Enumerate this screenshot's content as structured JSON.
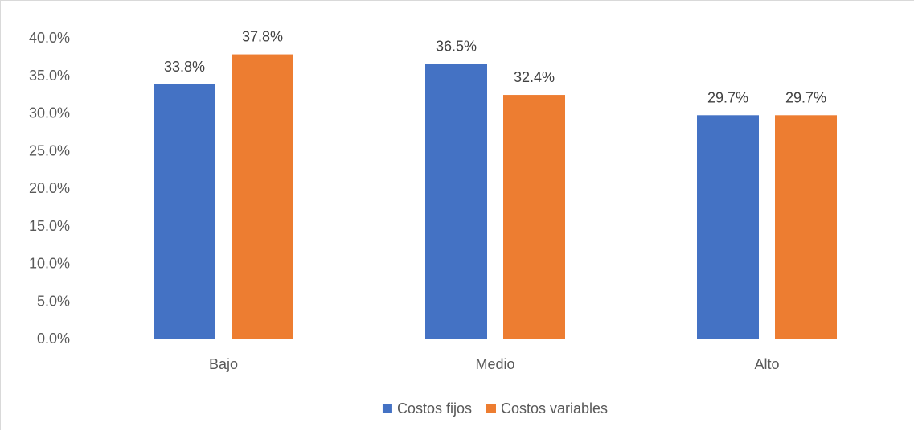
{
  "chart_data": {
    "type": "bar",
    "title": "",
    "xlabel": "",
    "ylabel": "",
    "categories": [
      "Bajo",
      "Medio",
      "Alto"
    ],
    "series": [
      {
        "name": "Costos fijos",
        "color": "#4472c4",
        "values": [
          33.8,
          36.5,
          29.7
        ],
        "labels": [
          "33.8%",
          "36.5%",
          "29.7%"
        ]
      },
      {
        "name": "Costos variables",
        "color": "#ed7d31",
        "values": [
          37.8,
          32.4,
          29.7
        ],
        "labels": [
          "37.8%",
          "32.4%",
          "29.7%"
        ]
      }
    ],
    "ylim": [
      0,
      40
    ],
    "yticks": [
      0,
      5,
      10,
      15,
      20,
      25,
      30,
      35,
      40
    ],
    "ytick_labels": [
      "0.0%",
      "5.0%",
      "10.0%",
      "15.0%",
      "20.0%",
      "25.0%",
      "30.0%",
      "35.0%",
      "40.0%"
    ],
    "grid": false,
    "legend_position": "bottom",
    "axis_color": "#d9d9d9"
  }
}
